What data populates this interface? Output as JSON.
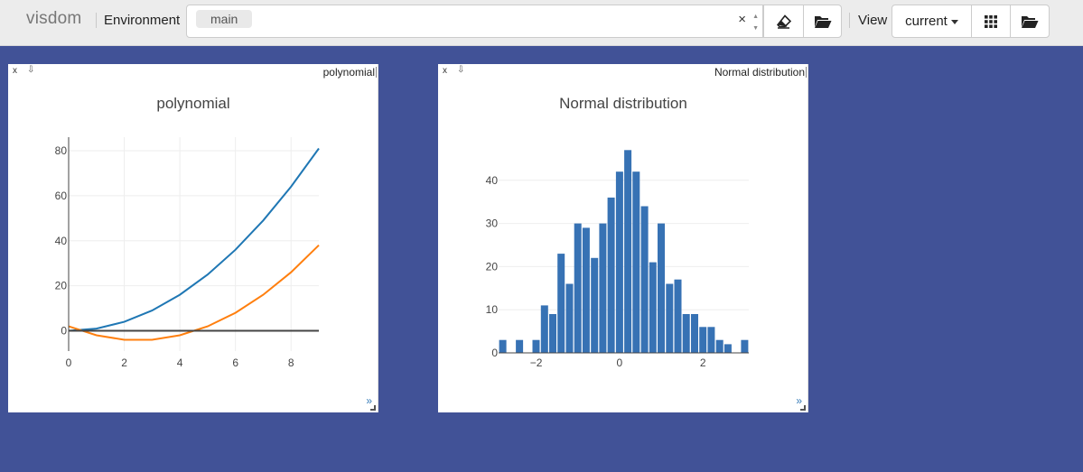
{
  "app": {
    "brand": "visdom"
  },
  "toolbar": {
    "environment_label": "Environment",
    "env_chip": "main",
    "clear_symbol": "×",
    "spin_up": "▲",
    "spin_down": "▼",
    "clear_button_icon": "eraser-icon",
    "manage_env_icon": "folder-open-icon",
    "view_label": "View",
    "view_select_value": "current",
    "grid_button_icon": "grid-icon",
    "view_folder_icon": "folder-open-icon"
  },
  "panes": [
    {
      "close_symbol": "x",
      "download_symbol": "⇩",
      "window_title": "polynomial",
      "expand_symbol": "»",
      "chart_data": {
        "type": "line",
        "title": "polynomial",
        "xlabel": "",
        "ylabel": "",
        "xlim": [
          0,
          9
        ],
        "ylim": [
          -9,
          86
        ],
        "xticks": [
          0,
          2,
          4,
          6,
          8
        ],
        "yticks": [
          0,
          20,
          40,
          60,
          80
        ],
        "grid": true,
        "x": [
          0,
          1,
          2,
          3,
          4,
          5,
          6,
          7,
          8,
          9
        ],
        "series": [
          {
            "color": "#1f77b4",
            "values": [
              0,
              1,
              4,
              9,
              16,
              25,
              36,
              49,
              64,
              81
            ]
          },
          {
            "color": "#ff7f0e",
            "values": [
              2,
              -2,
              -4,
              -4,
              -2,
              2,
              8,
              16,
              26,
              38
            ]
          }
        ]
      }
    },
    {
      "close_symbol": "x",
      "download_symbol": "⇩",
      "window_title": "Normal distribution",
      "expand_symbol": "»",
      "chart_data": {
        "type": "bar",
        "title": "Normal distribution",
        "xlabel": "",
        "ylabel": "",
        "xlim": [
          -2.9,
          3.1
        ],
        "ylim": [
          0,
          50
        ],
        "xticks": [
          -2,
          0,
          2
        ],
        "xtick_labels": [
          "−2",
          "0",
          "2"
        ],
        "yticks": [
          0,
          10,
          20,
          30,
          40
        ],
        "grid": true,
        "color": "#3772b4",
        "bin_edges_start": -2.9,
        "bin_width": 0.2,
        "values": [
          3,
          0,
          3,
          0,
          3,
          11,
          9,
          23,
          16,
          30,
          29,
          22,
          30,
          36,
          42,
          47,
          42,
          34,
          21,
          30,
          16,
          17,
          9,
          9,
          6,
          6,
          3,
          2,
          0,
          3
        ]
      }
    }
  ]
}
